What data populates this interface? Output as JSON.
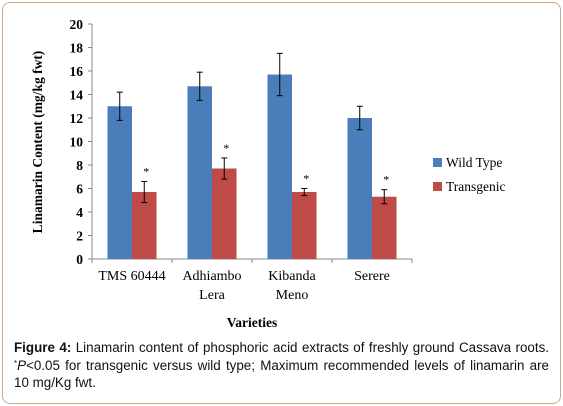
{
  "chart_data": {
    "type": "bar",
    "categories": [
      [
        "TMS 60444"
      ],
      [
        "Adhiambo",
        "Lera"
      ],
      [
        "Kibanda",
        "Meno"
      ],
      [
        "Serere"
      ]
    ],
    "series": [
      {
        "name": "Wild Type",
        "color": "#4a7ebb",
        "values": [
          13.0,
          14.7,
          15.7,
          12.0
        ],
        "errors": [
          1.2,
          1.2,
          1.8,
          1.0
        ]
      },
      {
        "name": "Transgenic",
        "color": "#be4b48",
        "values": [
          5.7,
          7.7,
          5.7,
          5.3
        ],
        "errors": [
          0.9,
          0.9,
          0.3,
          0.6
        ]
      }
    ],
    "significance": [
      "*",
      "*",
      "*",
      "*"
    ],
    "ylabel": "Linamarin Content (mg/kg fwt)",
    "xlabel": "Varieties",
    "ylim": [
      0,
      20
    ],
    "yticks": [
      "0",
      "2",
      "4",
      "6",
      "8",
      "10",
      "12",
      "14",
      "16",
      "18",
      "20"
    ],
    "grid": false,
    "legend": "right"
  },
  "caption": {
    "label": "Figure 4:",
    "text1": " Linamarin content of phosphoric acid extracts of freshly ground Cassava roots. ",
    "star": "*",
    "p": "P",
    "text2": "<0.05 for transgenic versus wild type; Maximum recommended levels of linamarin are 10 mg/Kg fwt."
  }
}
